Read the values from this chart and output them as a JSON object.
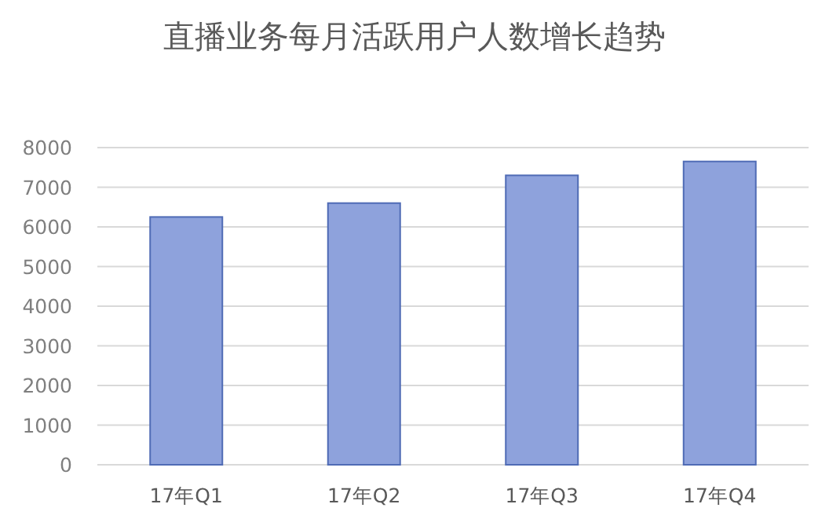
{
  "chart_data": {
    "type": "bar",
    "title": "直播业务每月活跃用户人数增长趋势",
    "categories": [
      "17年Q1",
      "17年Q2",
      "17年Q3",
      "17年Q4"
    ],
    "values": [
      6250,
      6600,
      7300,
      7650
    ],
    "color": "#8ea2dc",
    "ylim": [
      0,
      8000
    ],
    "yticks": [
      0,
      1000,
      2000,
      3000,
      4000,
      5000,
      6000,
      7000,
      8000
    ],
    "grid": "y"
  }
}
